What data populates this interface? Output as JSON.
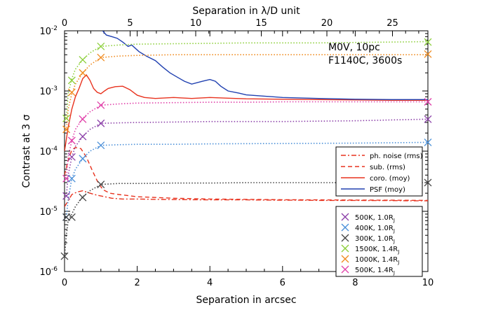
{
  "chart_data": {
    "type": "line",
    "yscale": "log",
    "xlabel": "Separation in arcsec",
    "ylabel": "Contrast at 3 σ",
    "top_xlabel": "Separation in λ/D unit",
    "xlim": [
      0,
      10
    ],
    "ylim": [
      1e-06,
      0.01
    ],
    "top_xlim": [
      0,
      27.7
    ],
    "x_ticks": [
      0,
      2,
      4,
      6,
      8,
      10
    ],
    "top_x_ticks": [
      0,
      5,
      10,
      15,
      20,
      25
    ],
    "y_ticks": [
      {
        "value": 1e-06,
        "base": "10",
        "exp": "-6"
      },
      {
        "value": 1e-05,
        "base": "10",
        "exp": "-5"
      },
      {
        "value": 0.0001,
        "base": "10",
        "exp": "-4"
      },
      {
        "value": 0.001,
        "base": "10",
        "exp": "-3"
      },
      {
        "value": 0.01,
        "base": "10",
        "exp": "-2"
      }
    ],
    "annotations": [
      "M0V, 10pc",
      "F1140C, 3600s"
    ],
    "noise_legend": [
      {
        "label": "ph. noise (rms)",
        "color": "#e8321e",
        "dash": "dashdot"
      },
      {
        "label": "sub. (rms)",
        "color": "#e8321e",
        "dash": "dash"
      },
      {
        "label": "coro. (moy)",
        "color": "#e8321e",
        "dash": "solid"
      },
      {
        "label": "PSF (moy)",
        "color": "#2040b0",
        "dash": "solid"
      }
    ],
    "planet_legend": [
      {
        "label": "500K, 1.0R",
        "sub": "J",
        "color": "#8b3fa8"
      },
      {
        "label": "400K, 1.0R",
        "sub": "J",
        "color": "#4a8fd8"
      },
      {
        "label": "300K, 1.0R",
        "sub": "J",
        "color": "#444444"
      },
      {
        "label": "1500K, 1.4R",
        "sub": "J",
        "color": "#8ccf3a"
      },
      {
        "label": "1000K, 1.4R",
        "sub": "J",
        "color": "#f08a1e"
      },
      {
        "label": "500K, 1.4R",
        "sub": "J",
        "color": "#e03ea8"
      }
    ],
    "series": [
      {
        "name": "ph. noise (rms)",
        "color": "#e8321e",
        "dash": "dashdot",
        "x": [
          0.0,
          0.1,
          0.2,
          0.35,
          0.5,
          0.7,
          0.9,
          1.1,
          1.3,
          1.6,
          2,
          2.5,
          3,
          3.5,
          4,
          4.5,
          5,
          5.5,
          6,
          6.5,
          7,
          7.5,
          8,
          8.5,
          9,
          9.5,
          10
        ],
        "y": [
          1.2e-05,
          1.5e-05,
          1.9e-05,
          2.1e-05,
          2.2e-05,
          2e-05,
          1.85e-05,
          1.75e-05,
          1.65e-05,
          1.6e-05,
          1.6e-05,
          1.58e-05,
          1.57e-05,
          1.56e-05,
          1.55e-05,
          1.55e-05,
          1.55e-05,
          1.54e-05,
          1.53e-05,
          1.53e-05,
          1.52e-05,
          1.52e-05,
          1.52e-05,
          1.51e-05,
          1.51e-05,
          1.5e-05,
          1.5e-05
        ]
      },
      {
        "name": "sub. (rms)",
        "color": "#e8321e",
        "dash": "dash",
        "x": [
          0.0,
          0.1,
          0.2,
          0.3,
          0.45,
          0.6,
          0.75,
          0.9,
          1.05,
          1.25,
          1.5,
          2,
          2.5,
          3,
          4,
          5,
          6,
          7,
          8,
          9,
          10
        ],
        "y": [
          4e-05,
          7e-05,
          0.000105,
          0.000115,
          0.00011,
          8e-05,
          5e-05,
          3.2e-05,
          2.3e-05,
          2e-05,
          1.9e-05,
          1.75e-05,
          1.7e-05,
          1.65e-05,
          1.6e-05,
          1.58e-05,
          1.56e-05,
          1.55e-05,
          1.54e-05,
          1.53e-05,
          1.52e-05
        ]
      },
      {
        "name": "coro. (moy)",
        "color": "#e8321e",
        "dash": "solid",
        "x": [
          0.0,
          0.1,
          0.2,
          0.3,
          0.4,
          0.5,
          0.6,
          0.7,
          0.8,
          0.9,
          1.0,
          1.1,
          1.2,
          1.4,
          1.6,
          1.8,
          2.0,
          2.2,
          2.5,
          3,
          3.5,
          4,
          4.5,
          5,
          6,
          7,
          8,
          9,
          10
        ],
        "y": [
          0.0001,
          0.00025,
          0.0005,
          0.0008,
          0.0011,
          0.0016,
          0.00185,
          0.0015,
          0.0011,
          0.00095,
          0.0009,
          0.001,
          0.0011,
          0.00118,
          0.0012,
          0.00105,
          0.00085,
          0.00078,
          0.00075,
          0.00078,
          0.00075,
          0.00078,
          0.00076,
          0.00074,
          0.00073,
          0.00072,
          0.00071,
          0.0007,
          0.0007
        ]
      },
      {
        "name": "PSF (moy)",
        "color": "#2040b0",
        "dash": "solid",
        "x": [
          1.05,
          1.15,
          1.3,
          1.45,
          1.6,
          1.75,
          1.85,
          2.05,
          2.25,
          2.5,
          2.7,
          2.9,
          3.1,
          3.3,
          3.5,
          3.8,
          4.0,
          4.15,
          4.3,
          4.5,
          4.8,
          5,
          5.5,
          6,
          7,
          8,
          9,
          10
        ],
        "y": [
          0.01,
          0.0085,
          0.008,
          0.0075,
          0.0065,
          0.0055,
          0.0058,
          0.0045,
          0.0038,
          0.0032,
          0.0025,
          0.002,
          0.0017,
          0.00145,
          0.0013,
          0.00145,
          0.00155,
          0.00145,
          0.0012,
          0.001,
          0.00092,
          0.00086,
          0.00082,
          0.00078,
          0.00075,
          0.00073,
          0.00072,
          0.00072
        ]
      },
      {
        "name": "1500K, 1.4RJ",
        "color": "#8ccf3a",
        "dash": "dot",
        "x": [
          0.05,
          0.1,
          0.2,
          0.3,
          0.5,
          0.7,
          1.0,
          1.5,
          2,
          3,
          4,
          5,
          6,
          7,
          8,
          9,
          10
        ],
        "y": [
          0.00035,
          0.0009,
          0.0016,
          0.0023,
          0.0033,
          0.0043,
          0.0055,
          0.0058,
          0.006,
          0.0061,
          0.0062,
          0.0063,
          0.0063,
          0.0063,
          0.0064,
          0.0065,
          0.0066
        ],
        "markers": [
          [
            0.05,
            0.00035
          ],
          [
            0.2,
            0.0015
          ],
          [
            0.5,
            0.0033
          ],
          [
            1.0,
            0.0055
          ],
          [
            10,
            0.0065
          ]
        ]
      },
      {
        "name": "1000K, 1.4RJ",
        "color": "#f08a1e",
        "dash": "dot",
        "x": [
          0.05,
          0.1,
          0.2,
          0.3,
          0.5,
          0.7,
          1.0,
          1.5,
          2,
          3,
          4,
          5,
          6,
          7,
          8,
          9,
          10
        ],
        "y": [
          0.00022,
          0.0005,
          0.0009,
          0.0013,
          0.002,
          0.0027,
          0.0036,
          0.0038,
          0.0039,
          0.004,
          0.004,
          0.004,
          0.004,
          0.004,
          0.004,
          0.004,
          0.004
        ],
        "markers": [
          [
            0.05,
            0.00023
          ],
          [
            0.2,
            0.00095
          ],
          [
            0.5,
            0.002
          ],
          [
            1.0,
            0.0036
          ],
          [
            10,
            0.0041
          ]
        ]
      },
      {
        "name": "500K, 1.4RJ",
        "color": "#e03ea8",
        "dash": "dot",
        "x": [
          0.05,
          0.1,
          0.2,
          0.3,
          0.5,
          0.7,
          1.0,
          1.5,
          2,
          3,
          4,
          5,
          6,
          7,
          8,
          9,
          10
        ],
        "y": [
          3.5e-05,
          8e-05,
          0.00015,
          0.00023,
          0.00035,
          0.00045,
          0.00058,
          0.00061,
          0.00063,
          0.00064,
          0.00065,
          0.00065,
          0.00066,
          0.00066,
          0.00066,
          0.00066,
          0.00066
        ],
        "markers": [
          [
            0.05,
            3.5e-05
          ],
          [
            0.2,
            0.00015
          ],
          [
            0.5,
            0.00034
          ],
          [
            1.0,
            0.00058
          ],
          [
            10,
            0.00066
          ]
        ]
      },
      {
        "name": "500K, 1.0RJ",
        "color": "#8b3fa8",
        "dash": "dot",
        "x": [
          0.05,
          0.1,
          0.2,
          0.3,
          0.5,
          0.7,
          1.0,
          1.5,
          2,
          3,
          4,
          5,
          6,
          7,
          8,
          9,
          10
        ],
        "y": [
          1.8e-05,
          4e-05,
          8e-05,
          0.00012,
          0.000175,
          0.00023,
          0.00029,
          0.000295,
          0.0003,
          0.000305,
          0.00031,
          0.00031,
          0.00031,
          0.000315,
          0.00032,
          0.00033,
          0.00034
        ],
        "markers": [
          [
            0.05,
            1.8e-05
          ],
          [
            0.2,
            8e-05
          ],
          [
            0.5,
            0.000175
          ],
          [
            1.0,
            0.00029
          ],
          [
            10,
            0.00034
          ]
        ]
      },
      {
        "name": "400K, 1.0RJ",
        "color": "#4a8fd8",
        "dash": "dot",
        "x": [
          0.05,
          0.1,
          0.2,
          0.3,
          0.5,
          0.7,
          1.0,
          1.5,
          2,
          3,
          4,
          5,
          6,
          7,
          8,
          9,
          10
        ],
        "y": [
          8e-06,
          1.6e-05,
          3.5e-05,
          5e-05,
          7.5e-05,
          0.0001,
          0.000125,
          0.000128,
          0.00013,
          0.00013,
          0.000132,
          0.000133,
          0.000134,
          0.000135,
          0.000136,
          0.000138,
          0.00014
        ],
        "markers": [
          [
            0.05,
            8e-06
          ],
          [
            0.2,
            3.5e-05
          ],
          [
            0.5,
            7.5e-05
          ],
          [
            1.0,
            0.000125
          ],
          [
            10,
            0.00014
          ]
        ]
      },
      {
        "name": "300K, 1.0RJ",
        "color": "#444444",
        "dash": "dot",
        "x": [
          0.0,
          0.05,
          0.1,
          0.2,
          0.3,
          0.5,
          0.7,
          1.0,
          1.5,
          2,
          3,
          4,
          5,
          6,
          7,
          8,
          9,
          10
        ],
        "y": [
          1.8e-06,
          4e-06,
          7e-06,
          9e-06,
          1.2e-05,
          1.75e-05,
          2.2e-05,
          2.8e-05,
          2.9e-05,
          2.9e-05,
          2.95e-05,
          2.95e-05,
          3e-05,
          3e-05,
          3e-05,
          3e-05,
          3e-05,
          3e-05
        ],
        "markers": [
          [
            0.0,
            1.8e-06
          ],
          [
            0.05,
            8e-06
          ],
          [
            0.2,
            8e-06
          ],
          [
            0.5,
            1.7e-05
          ],
          [
            1.0,
            2.8e-05
          ],
          [
            10,
            3e-05
          ]
        ]
      }
    ]
  }
}
